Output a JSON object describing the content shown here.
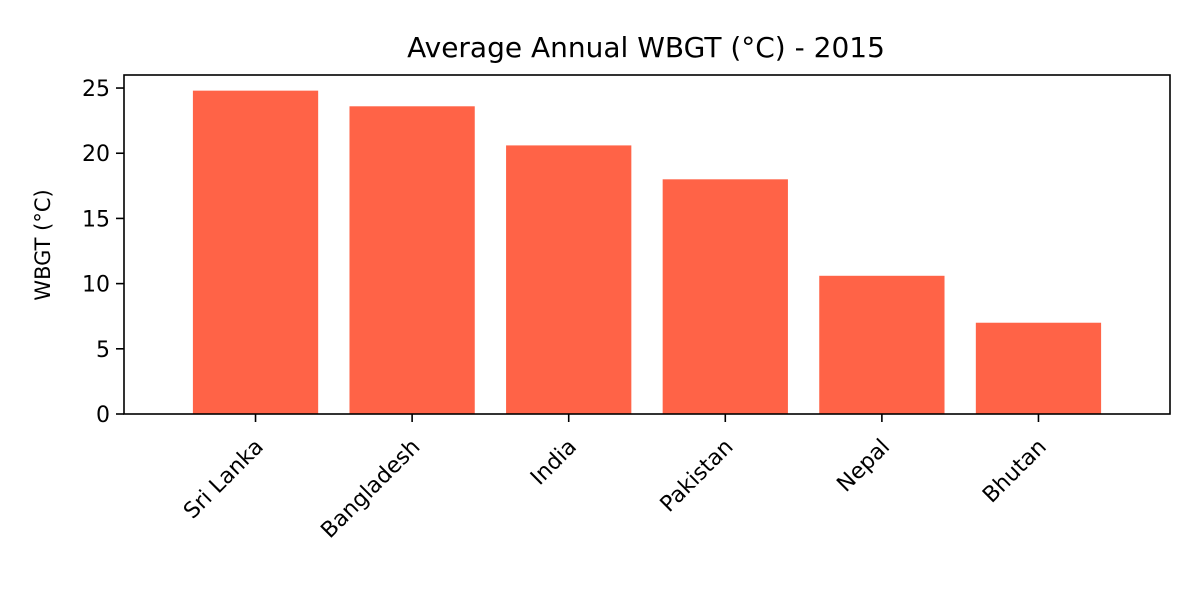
{
  "chart_data": {
    "type": "bar",
    "title": "Average Annual WBGT (°C) - 2015",
    "xlabel": "",
    "ylabel": "WBGT (°C)",
    "categories": [
      "Sri Lanka",
      "Bangladesh",
      "India",
      "Pakistan",
      "Nepal",
      "Bhutan"
    ],
    "values": [
      24.8,
      23.6,
      20.6,
      18.0,
      10.6,
      7.0
    ],
    "ylim": [
      0,
      26
    ],
    "yticks": [
      0,
      5,
      10,
      15,
      20,
      25
    ],
    "bar_color": "#ff6347",
    "grid": false,
    "legend": false
  }
}
